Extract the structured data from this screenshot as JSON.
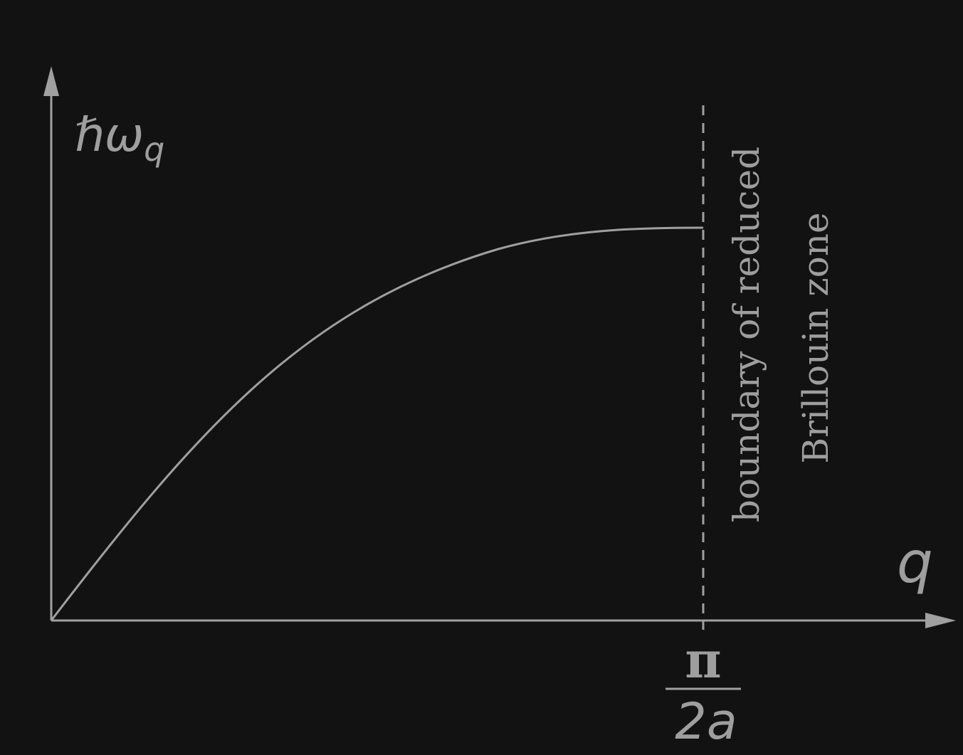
{
  "diagram": {
    "y_axis_label_main": "ℏω",
    "y_axis_label_sub": "q",
    "x_axis_label": "q",
    "tick_numerator": "π",
    "tick_denominator": "2a",
    "boundary_line1": "boundary of reduced",
    "boundary_line2": "Brillouin zone",
    "colors": {
      "background": "#121212",
      "stroke": "#a0a0a0",
      "text": "#9e9e9e"
    }
  }
}
